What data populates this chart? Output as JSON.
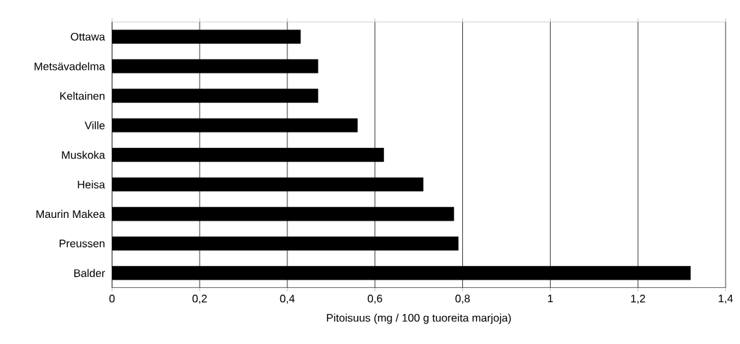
{
  "chart_data": {
    "type": "bar",
    "orientation": "horizontal",
    "xlabel": "Pitoisuus (mg / 100 g tuoreita marjoja)",
    "categories": [
      "Ottawa",
      "Metsävadelma",
      "Keltainen",
      "Ville",
      "Muskoka",
      "Heisa",
      "Maurin Makea",
      "Preussen",
      "Balder"
    ],
    "values": [
      0.43,
      0.47,
      0.47,
      0.56,
      0.62,
      0.71,
      0.78,
      0.79,
      1.32
    ],
    "color": "#000000",
    "xlim": [
      0,
      1.4
    ],
    "xticks": [
      0,
      {
        "value": 0.2,
        "label": "0,2"
      },
      {
        "value": 0.4,
        "label": "0,4"
      },
      {
        "value": 0.6,
        "label": "0,6"
      },
      {
        "value": 0.8,
        "label": "0,8"
      },
      1,
      {
        "value": 1.2,
        "label": "1,2"
      },
      {
        "value": 1.4,
        "label": "1,4"
      }
    ],
    "grid": "x"
  }
}
